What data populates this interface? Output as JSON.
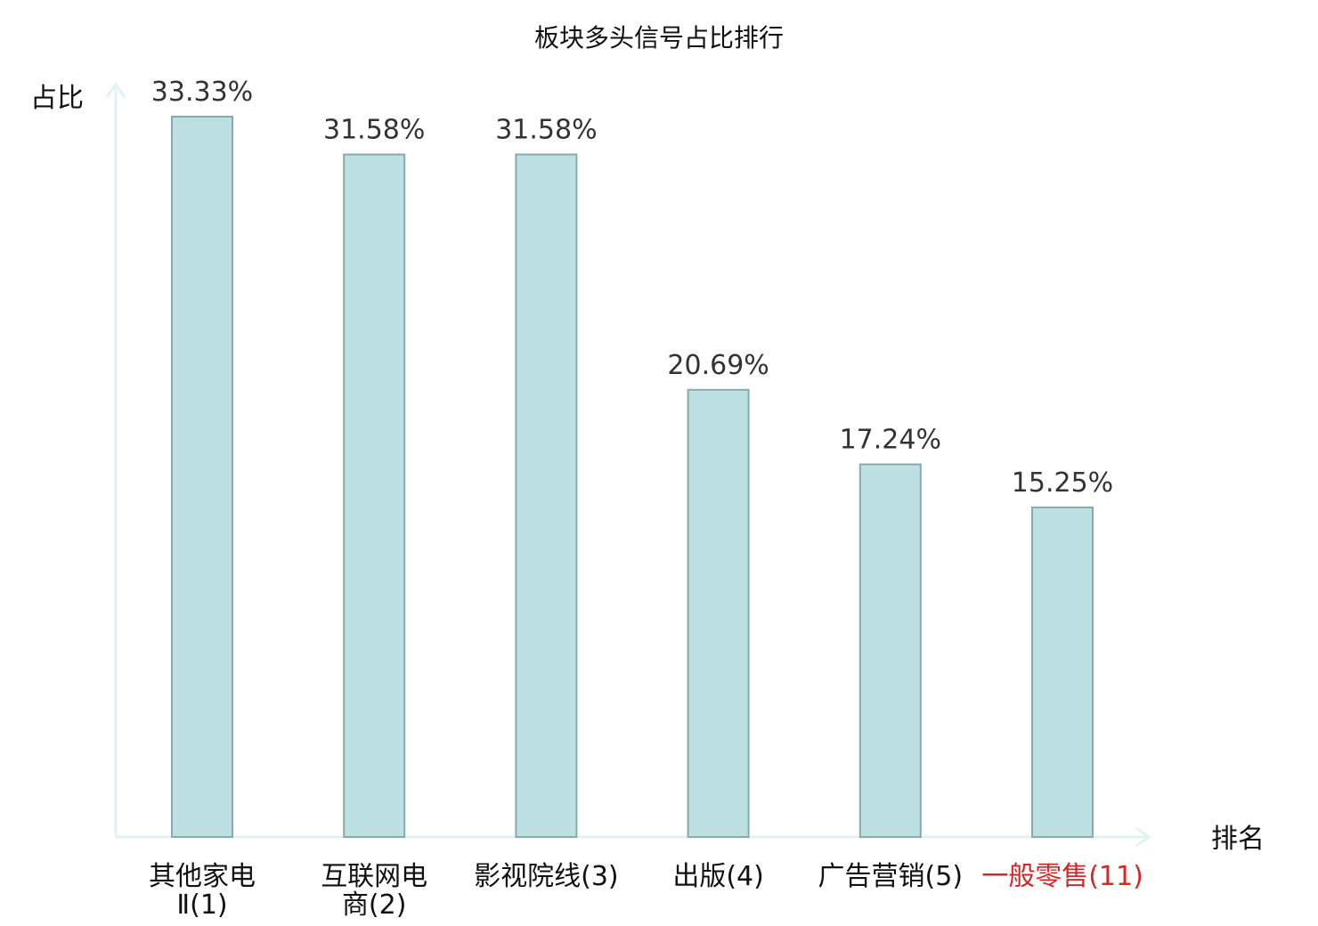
{
  "chart_data": {
    "type": "bar",
    "title": "板块多头信号占比排行",
    "ylabel": "占比",
    "xlabel": "排名",
    "ylim": [
      0,
      35
    ],
    "grid": false,
    "categories": [
      {
        "lines": [
          "其他家电",
          "Ⅱ(1)"
        ]
      },
      {
        "lines": [
          "互联网电",
          "商(2)"
        ]
      },
      {
        "lines": [
          "影视院线(3)"
        ]
      },
      {
        "lines": [
          "出版(4)"
        ]
      },
      {
        "lines": [
          "广告营销(5)"
        ]
      },
      {
        "lines": [
          "一般零售(11)"
        ],
        "highlight": true
      }
    ],
    "values": [
      33.33,
      31.58,
      31.58,
      20.69,
      17.24,
      15.25
    ],
    "value_labels": [
      "33.33%",
      "31.58%",
      "31.58%",
      "20.69%",
      "17.24%",
      "15.25%"
    ],
    "colors": {
      "bar_fill": "#bde1e3",
      "bar_stroke": "#8aa9aa",
      "axis": "#e0f3f1",
      "highlight": "#d62728"
    }
  }
}
